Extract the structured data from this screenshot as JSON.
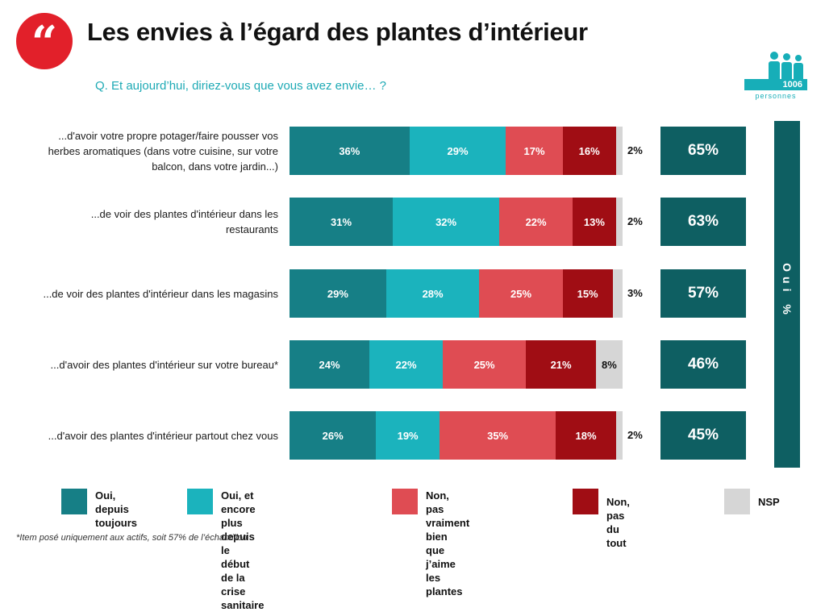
{
  "header": {
    "quote_mark": "“",
    "title": "Les envies à l’égard des plantes d’intérieur",
    "question": "Q. Et aujourd’hui, diriez-vous que vous avez envie… ?",
    "sample_count": "1006",
    "sample_label": "personnes"
  },
  "colors": {
    "oui_toujours": "#167f86",
    "oui_crise": "#1bb3bd",
    "non_pas_vraiment": "#df4c53",
    "non_pas_du_tout": "#a00d14",
    "nsp": "#d6d6d6",
    "total_oui": "#0e5f62",
    "accent_red": "#e2202a"
  },
  "chart_data": {
    "type": "bar",
    "orientation": "horizontal",
    "stacked": true,
    "categories": [
      "...d'avoir votre propre potager/faire pousser vos herbes aromatiques (dans votre cuisine, sur votre balcon, dans votre jardin...)",
      "...de voir des plantes d'intérieur dans les restaurants",
      "...de voir des plantes d'intérieur dans les magasins",
      "...d'avoir des plantes d'intérieur sur votre bureau*",
      "...d'avoir des plantes d'intérieur partout chez vous"
    ],
    "series": [
      {
        "name": "Oui, depuis toujours",
        "values": [
          36,
          31,
          29,
          24,
          26
        ]
      },
      {
        "name": "Oui, et encore plus depuis le début de la crise sanitaire",
        "values": [
          29,
          32,
          28,
          22,
          19
        ]
      },
      {
        "name": "Non, pas vraiment bien que j’aime les plantes",
        "values": [
          17,
          22,
          25,
          25,
          35
        ]
      },
      {
        "name": "Non, pas du tout",
        "values": [
          16,
          13,
          15,
          21,
          18
        ]
      },
      {
        "name": "NSP",
        "values": [
          2,
          2,
          3,
          8,
          2
        ]
      }
    ],
    "total_oui": {
      "name": "Oui %",
      "values": [
        65,
        63,
        57,
        46,
        45
      ]
    },
    "unit": "%",
    "legend_position": "bottom"
  },
  "footnote": "*Item posé uniquement aux actifs, soit 57% de l’échantillon"
}
